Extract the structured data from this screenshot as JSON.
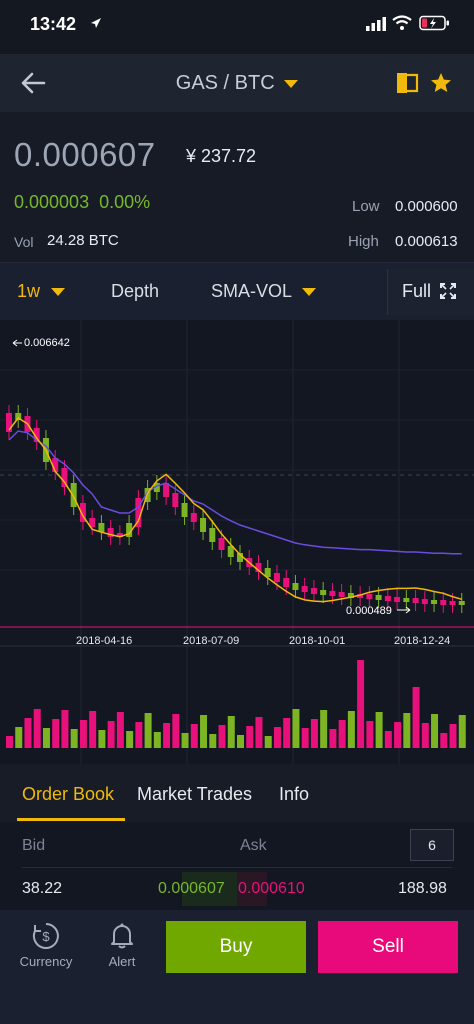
{
  "status": {
    "time": "13:42"
  },
  "header": {
    "pair": "GAS / BTC"
  },
  "ticker": {
    "last_price": "0.000607",
    "cny_price": "¥ 237.72",
    "change_abs": "0.000003",
    "change_pct": "0.00%",
    "vol_label": "Vol",
    "vol_value": "24.28 BTC",
    "low_label": "Low",
    "low_value": "0.000600",
    "high_label": "High",
    "high_value": "0.000613"
  },
  "chart_tabs": {
    "interval": "1w",
    "depth": "Depth",
    "indicator": "SMA-VOL",
    "full": "Full"
  },
  "chart": {
    "max_label": "0.006642",
    "min_label": "0.000489",
    "dates": [
      "2018-04-16",
      "2018-07-09",
      "2018-10-01",
      "2018-12-24"
    ],
    "colors": {
      "up": "#7cb424",
      "down": "#e8107a",
      "ma_short": "#f0b90b",
      "ma_long": "#6a4ce0"
    }
  },
  "order_tabs": {
    "order_book": "Order Book",
    "market_trades": "Market Trades",
    "info": "Info"
  },
  "book": {
    "bid_label": "Bid",
    "ask_label": "Ask",
    "depth_btn": "6",
    "row": {
      "bid_qty": "38.22",
      "bid_price": "0.000607",
      "ask_price": "0.000610",
      "ask_qty": "188.98"
    }
  },
  "footer": {
    "currency": "Currency",
    "alert": "Alert",
    "buy": "Buy",
    "sell": "Sell"
  }
}
